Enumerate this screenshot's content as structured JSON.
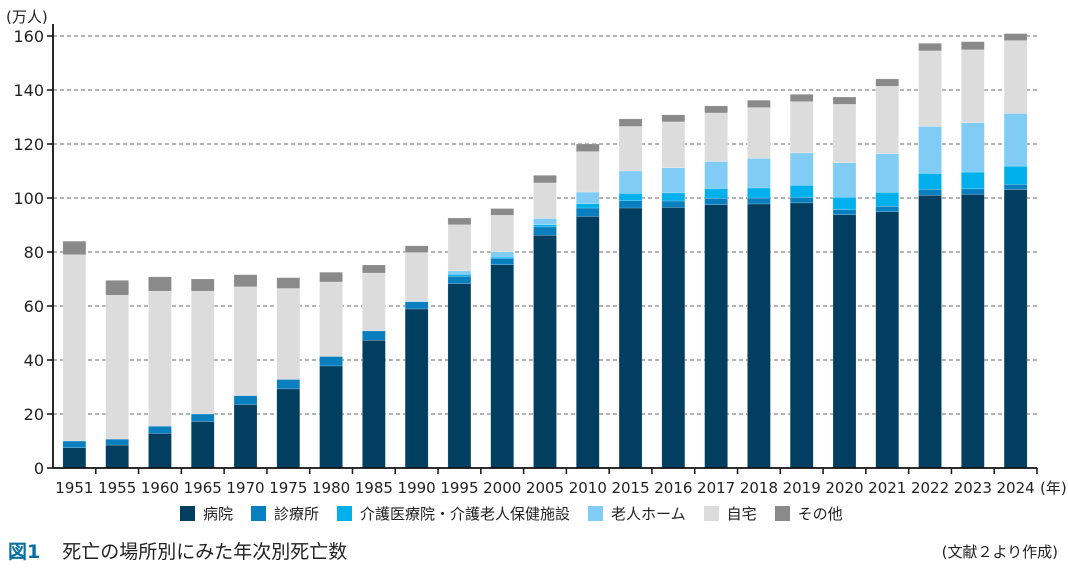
{
  "caption": {
    "figure_number": "図1",
    "title": "死亡の場所別にみた年次別死亡数",
    "source": "(文献２より作成)"
  },
  "chart_data": {
    "type": "bar",
    "stacked": true,
    "title": "死亡の場所別にみた年次別死亡数",
    "ylabel": "(万人)",
    "xlabel": "(年)",
    "ylim": [
      0,
      160
    ],
    "yticks": [
      0,
      20,
      40,
      60,
      80,
      100,
      120,
      140,
      160
    ],
    "grid": true,
    "legend_position": "bottom",
    "categories": [
      "1951",
      "1955",
      "1960",
      "1965",
      "1970",
      "1975",
      "1980",
      "1985",
      "1990",
      "1995",
      "2000",
      "2005",
      "2010",
      "2015",
      "2016",
      "2017",
      "2018",
      "2019",
      "2020",
      "2021",
      "2022",
      "2023",
      "2024"
    ],
    "series": [
      {
        "name": "病院",
        "color": "#023e5f",
        "values": [
          7.5,
          8.5,
          12.8,
          17.2,
          23.5,
          29.3,
          37.8,
          47.3,
          58.9,
          68.3,
          75.3,
          86.2,
          93.2,
          96.3,
          96.5,
          97.5,
          97.8,
          98.2,
          93.8,
          94.9,
          101.0,
          101.3,
          103.1
        ]
      },
      {
        "name": "診療所",
        "color": "#0a7fbf",
        "values": [
          2.5,
          2.2,
          2.7,
          2.8,
          3.3,
          3.5,
          3.5,
          3.5,
          2.7,
          2.7,
          2.3,
          3.1,
          3.1,
          2.7,
          2.4,
          2.4,
          2.2,
          2.0,
          1.9,
          2.0,
          2.2,
          2.1,
          1.9
        ]
      },
      {
        "name": "介護医療院・介護老人保健施設",
        "color": "#00b0ec",
        "values": [
          0,
          0,
          0,
          0,
          0,
          0,
          0,
          0,
          0,
          0.7,
          0.5,
          0.8,
          1.6,
          2.7,
          3.0,
          3.6,
          3.7,
          4.5,
          4.6,
          5.2,
          5.9,
          6.2,
          6.8
        ]
      },
      {
        "name": "老人ホーム",
        "color": "#80ccf4",
        "values": [
          0,
          0,
          0,
          0,
          0,
          0,
          0,
          0,
          0.2,
          1.3,
          2.0,
          2.3,
          4.3,
          8.3,
          9.3,
          10.0,
          11.0,
          12.0,
          12.8,
          14.3,
          17.4,
          18.3,
          19.5
        ]
      },
      {
        "name": "自宅",
        "color": "#dcdcdc",
        "values": [
          69.0,
          53.3,
          50.0,
          45.5,
          40.3,
          33.7,
          27.6,
          21.4,
          18.0,
          17.1,
          13.5,
          13.2,
          15.0,
          16.5,
          17.0,
          18.0,
          18.8,
          19.0,
          21.6,
          25.0,
          28.0,
          27.0,
          27.0
        ]
      },
      {
        "name": "その他",
        "color": "#8a8a8a",
        "values": [
          5.0,
          5.5,
          5.3,
          4.5,
          4.5,
          4.0,
          3.6,
          3.0,
          2.5,
          2.5,
          2.5,
          2.8,
          2.8,
          2.8,
          2.6,
          2.6,
          2.7,
          2.7,
          2.7,
          2.7,
          2.8,
          3.0,
          2.6
        ]
      }
    ]
  }
}
